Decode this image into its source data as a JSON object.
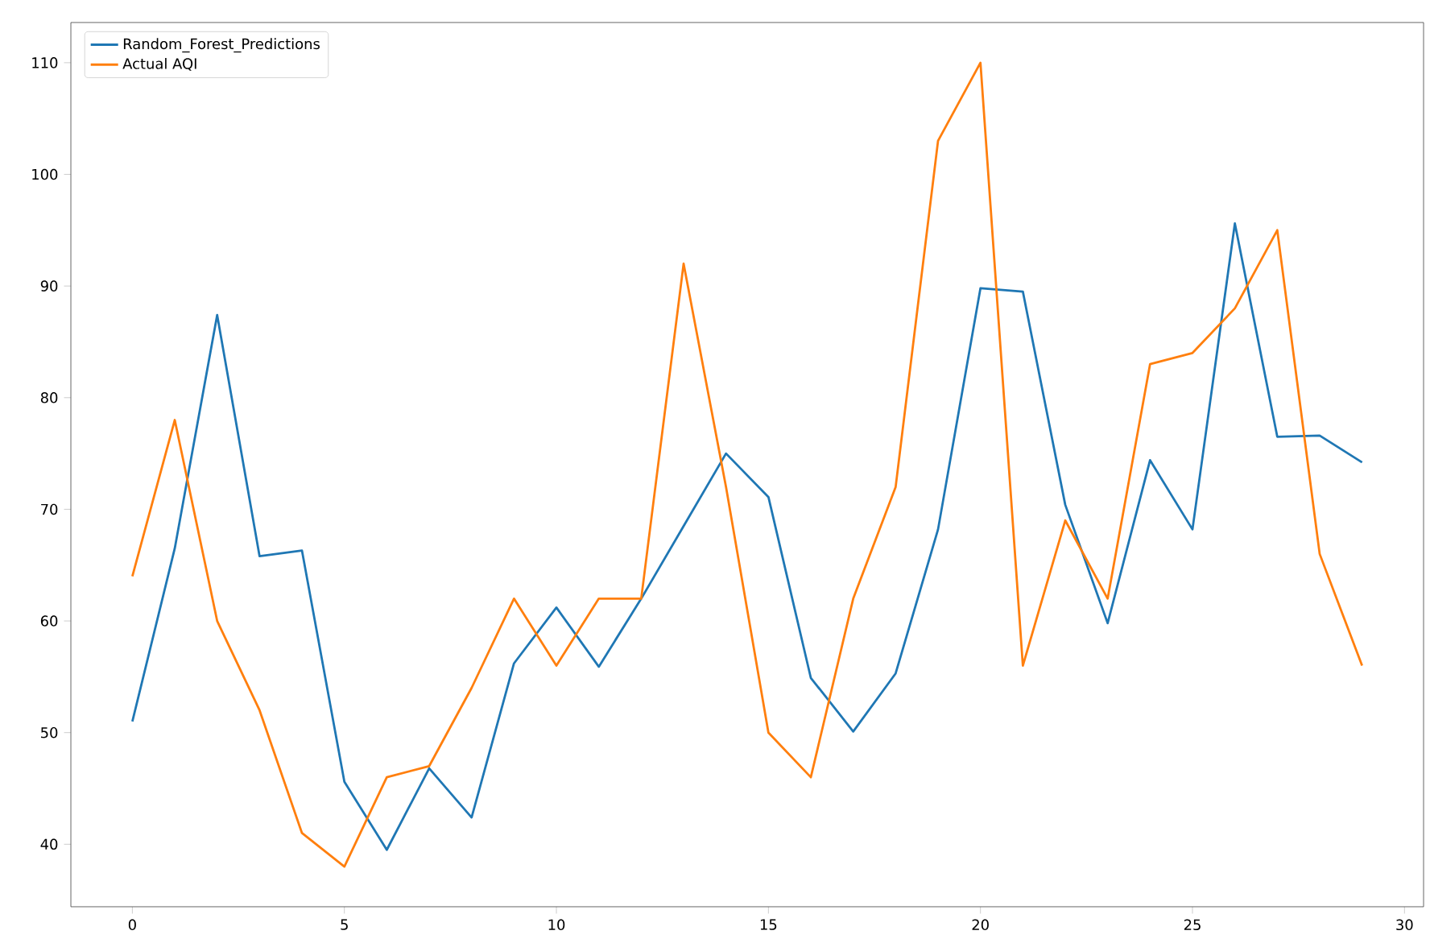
{
  "chart_data": {
    "type": "line",
    "x": [
      0,
      1,
      2,
      3,
      4,
      5,
      6,
      7,
      8,
      9,
      10,
      11,
      12,
      13,
      14,
      15,
      16,
      17,
      18,
      19,
      20,
      21,
      22,
      23,
      24,
      25,
      26,
      27,
      28,
      29
    ],
    "series": [
      {
        "name": "Random_Forest_Predictions",
        "color": "#1f77b4",
        "values": [
          51,
          66.5,
          87.4,
          65.8,
          66.3,
          45.6,
          39.5,
          46.8,
          42.4,
          56.2,
          61.2,
          55.9,
          62,
          68.5,
          75,
          71.1,
          54.9,
          50.1,
          55.3,
          68.2,
          89.8,
          89.5,
          70.4,
          59.8,
          74.4,
          68.2,
          95.6,
          76.5,
          76.6,
          74.2
        ]
      },
      {
        "name": "Actual AQI",
        "color": "#ff7f0e",
        "values": [
          64,
          78,
          60,
          52,
          41,
          38,
          46,
          47,
          54,
          62,
          56,
          62,
          62,
          92,
          72,
          50,
          46,
          62,
          72,
          103,
          110,
          56,
          69,
          62,
          83,
          84,
          88,
          95,
          66,
          56
        ]
      }
    ],
    "xlim": [
      -1.45,
      30.45
    ],
    "ylim": [
      34.4,
      113.6
    ],
    "xticks": [
      0,
      5,
      10,
      15,
      20,
      25,
      30
    ],
    "yticks": [
      40,
      50,
      60,
      70,
      80,
      90,
      100,
      110
    ],
    "legend": "top left",
    "grid": false,
    "marker": "none",
    "line_style": "solid"
  }
}
